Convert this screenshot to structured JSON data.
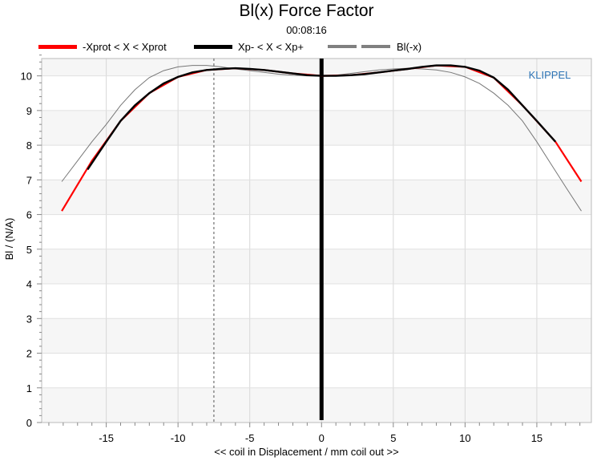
{
  "chart_data": {
    "type": "line",
    "title": "Bl(x) Force Factor",
    "subtitle": "00:08:16",
    "xlabel": "<< coil in Displacement / mm coil out >>",
    "ylabel": "Bl / (N/A)",
    "watermark": "KLIPPEL",
    "xlim": [
      -19.5,
      18.8
    ],
    "ylim": [
      0,
      10.5
    ],
    "xticks": [
      -15,
      -10,
      -5,
      0,
      5,
      10,
      15
    ],
    "yticks": [
      0,
      1,
      2,
      3,
      4,
      5,
      6,
      7,
      8,
      9,
      10
    ],
    "grid": true,
    "legend_position": "top",
    "legend": [
      {
        "label": "-Xprot < X < Xprot",
        "color": "#ff0000",
        "style": "solid"
      },
      {
        "label": "Xp- < X < Xp+",
        "color": "#000000",
        "style": "solid"
      },
      {
        "label": "Bl(-x)",
        "color": "#808080",
        "style": "dashed"
      }
    ],
    "series": [
      {
        "name": "-Xprot < X < Xprot",
        "color": "#ff0000",
        "x": [
          -18.1,
          -16.0,
          -14.0,
          -12.0,
          -10.0,
          -8.0,
          -6.0,
          -4.0,
          -2.0,
          0.0,
          2.0,
          4.0,
          6.0,
          8.0,
          10.0,
          12.0,
          14.0,
          16.3,
          18.1
        ],
        "y": [
          6.1,
          7.55,
          8.7,
          9.5,
          9.97,
          10.17,
          10.22,
          10.17,
          10.07,
          10.0,
          10.02,
          10.1,
          10.2,
          10.3,
          10.26,
          9.95,
          9.15,
          8.1,
          6.95
        ]
      },
      {
        "name": "Xp- < X < Xp+",
        "color": "#000000",
        "x": [
          -16.3,
          -15.0,
          -14.0,
          -13.0,
          -12.0,
          -11.0,
          -10.0,
          -9.0,
          -8.0,
          -7.0,
          -6.0,
          -5.0,
          -4.0,
          -3.0,
          -2.0,
          -1.0,
          0.0,
          1.0,
          2.0,
          3.0,
          4.0,
          5.0,
          6.0,
          7.0,
          8.0,
          9.0,
          10.0,
          11.0,
          12.0,
          13.0,
          14.0,
          15.0,
          16.3
        ],
        "y": [
          7.3,
          8.1,
          8.7,
          9.15,
          9.5,
          9.78,
          9.97,
          10.1,
          10.17,
          10.2,
          10.22,
          10.2,
          10.17,
          10.12,
          10.07,
          10.02,
          10.0,
          10.0,
          10.02,
          10.05,
          10.1,
          10.15,
          10.2,
          10.26,
          10.3,
          10.3,
          10.26,
          10.15,
          9.95,
          9.6,
          9.15,
          8.7,
          8.1
        ]
      },
      {
        "name": "Bl(-x)",
        "color": "#808080",
        "x": [
          -18.1,
          -17.0,
          -16.0,
          -15.0,
          -14.0,
          -13.0,
          -12.0,
          -11.0,
          -10.0,
          -9.0,
          -8.0,
          -7.0,
          -6.0,
          -5.0,
          -4.0,
          -3.0,
          -2.0,
          -1.0,
          0.0,
          1.0,
          2.0,
          3.0,
          4.0,
          5.0,
          6.0,
          7.0,
          8.0,
          9.0,
          10.0,
          11.0,
          12.0,
          13.0,
          14.0,
          15.0,
          16.0,
          17.0,
          18.1
        ],
        "y": [
          6.95,
          7.55,
          8.1,
          8.6,
          9.15,
          9.6,
          9.95,
          10.15,
          10.26,
          10.3,
          10.3,
          10.26,
          10.2,
          10.15,
          10.1,
          10.05,
          10.02,
          10.0,
          10.0,
          10.02,
          10.07,
          10.12,
          10.17,
          10.2,
          10.22,
          10.2,
          10.17,
          10.1,
          9.97,
          9.78,
          9.5,
          9.15,
          8.7,
          8.1,
          7.45,
          6.8,
          6.1
        ]
      }
    ],
    "markers": [
      {
        "x": -7.5,
        "style": "dashed",
        "color": "#555555"
      },
      {
        "x": 0,
        "style": "thick",
        "color": "#000000"
      }
    ]
  }
}
